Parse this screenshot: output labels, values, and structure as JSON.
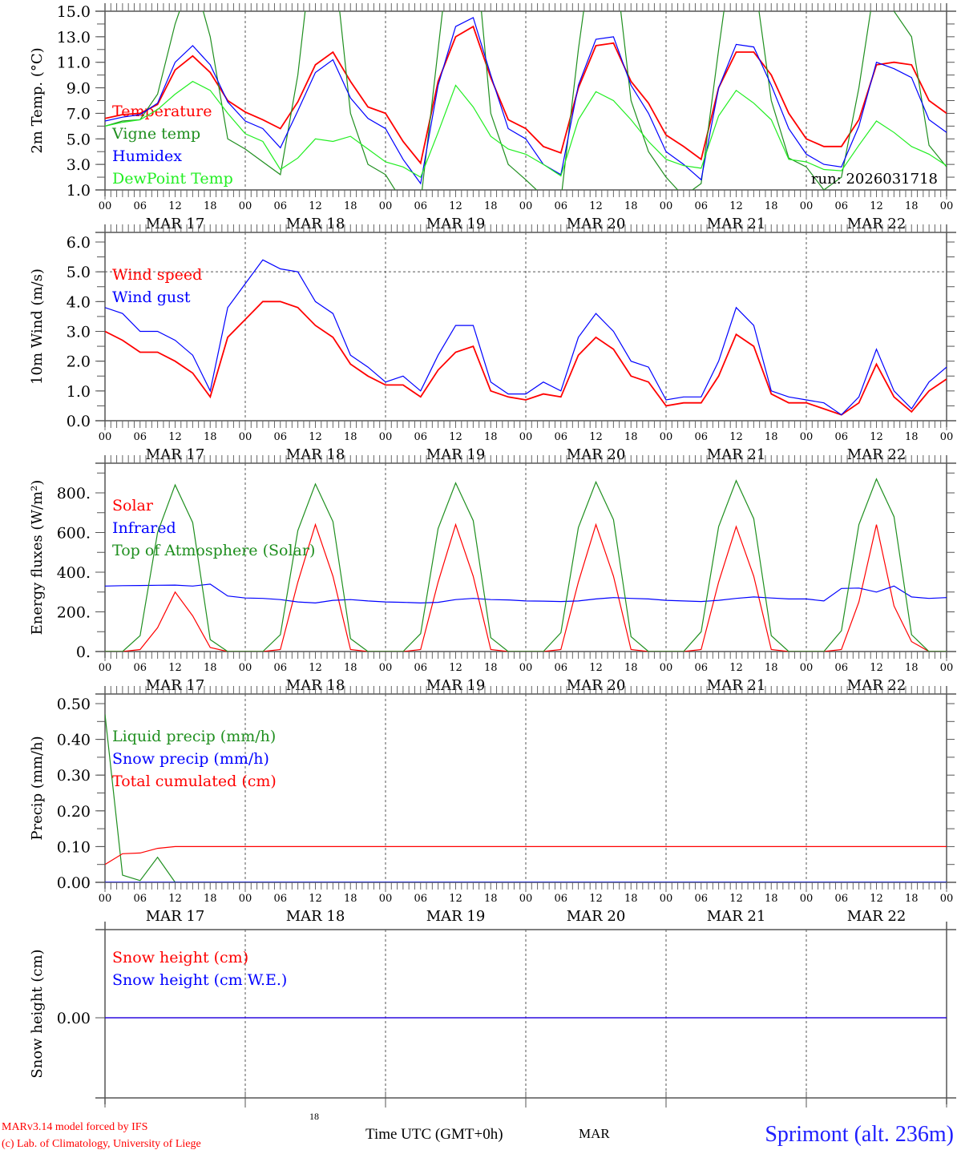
{
  "x_axis": {
    "step_hours": 3,
    "hour_labels": [
      "00",
      "06",
      "12",
      "18"
    ],
    "final_label": "00",
    "day_labels": [
      "MAR 17",
      "MAR 18",
      "MAR 19",
      "MAR 20",
      "MAR 21",
      "MAR 22"
    ]
  },
  "chart_data": [
    {
      "type": "line",
      "ylabel": "2m Temp. (°C)",
      "ylim": [
        1,
        15
      ],
      "ytick_labels": [
        {
          "v": 1,
          "t": "1.0"
        },
        {
          "v": 3,
          "t": "3.0"
        },
        {
          "v": 5,
          "t": "5.0"
        },
        {
          "v": 7,
          "t": "7.0"
        },
        {
          "v": 9,
          "t": "9.0"
        },
        {
          "v": 11,
          "t": "11.0"
        },
        {
          "v": 13,
          "t": "13.0"
        },
        {
          "v": 15,
          "t": "15.0"
        }
      ],
      "minor_step": 1,
      "annotation": "run: 2026031718",
      "series": [
        {
          "name": "Temperature",
          "color": "#ff0000",
          "values": [
            6.6,
            6.9,
            7.0,
            7.7,
            10.4,
            11.5,
            10.2,
            8.0,
            7.1,
            6.5,
            5.8,
            7.9,
            10.8,
            11.8,
            9.5,
            7.5,
            7.0,
            4.8,
            3.1,
            9.5,
            13.0,
            13.8,
            9.8,
            6.5,
            5.8,
            4.4,
            3.9,
            9.0,
            12.3,
            12.5,
            9.5,
            7.8,
            5.3,
            4.4,
            3.4,
            9.0,
            11.8,
            11.8,
            10.0,
            7.0,
            5.0,
            4.4,
            4.4,
            6.5,
            10.8,
            11.0,
            10.8,
            8.0,
            7.0
          ]
        },
        {
          "name": "Vigne temp",
          "color": "#1f8f1f",
          "values": [
            6.0,
            6.4,
            6.5,
            8.5,
            14.0,
            18,
            13,
            5.0,
            4.2,
            3.2,
            2.2,
            10,
            22,
            20,
            7,
            3.0,
            2.2,
            0,
            0,
            12,
            24,
            22,
            7,
            3,
            1.8,
            0.5,
            0.2,
            12,
            22,
            20,
            8,
            4,
            2.0,
            0.5,
            1.5,
            12,
            22,
            18,
            8,
            3.5,
            2.8,
            1.0,
            2.0,
            9,
            18,
            15,
            13,
            4.5,
            2.8
          ]
        },
        {
          "name": "Humidex",
          "color": "#0000ff",
          "values": [
            6.4,
            6.7,
            6.9,
            7.8,
            11.0,
            12.3,
            10.8,
            7.9,
            6.4,
            5.8,
            4.3,
            7.2,
            10.2,
            11.2,
            8.2,
            6.6,
            5.8,
            3.4,
            1.5,
            9.2,
            13.8,
            14.5,
            10.0,
            5.8,
            5.0,
            3.0,
            2.2,
            9.2,
            12.8,
            13.0,
            9.2,
            7.0,
            4.0,
            3.0,
            1.8,
            9.0,
            12.4,
            12.2,
            9.2,
            5.8,
            3.8,
            3.0,
            2.8,
            6.0,
            11.0,
            10.5,
            9.8,
            6.5,
            5.5
          ]
        },
        {
          "name": "DewPoint Temp",
          "color": "#22ee22",
          "values": [
            6.0,
            6.3,
            6.5,
            7.3,
            8.5,
            9.5,
            8.8,
            7.0,
            5.4,
            4.8,
            2.6,
            3.5,
            5.0,
            4.8,
            5.2,
            4.2,
            3.2,
            2.8,
            2.0,
            5.5,
            9.2,
            7.5,
            5.2,
            4.2,
            3.8,
            3.0,
            2.1,
            6.5,
            8.7,
            8.0,
            6.5,
            4.8,
            3.4,
            2.9,
            2.7,
            6.8,
            8.8,
            7.8,
            6.5,
            3.4,
            3.2,
            2.6,
            2.5,
            4.5,
            6.4,
            5.5,
            4.4,
            3.8,
            2.9
          ]
        }
      ]
    },
    {
      "type": "line",
      "ylabel": "10m Wind (m/s)",
      "ylim": [
        0,
        6
      ],
      "ytick_labels": [
        {
          "v": 0,
          "t": "0.0"
        },
        {
          "v": 1,
          "t": "1.0"
        },
        {
          "v": 2,
          "t": "2.0"
        },
        {
          "v": 3,
          "t": "3.0"
        },
        {
          "v": 4,
          "t": "4.0"
        },
        {
          "v": 5,
          "t": "5.0"
        },
        {
          "v": 6,
          "t": "6.0"
        }
      ],
      "minor_step": 0.5,
      "reference_lines": [
        5
      ],
      "series": [
        {
          "name": "Wind speed",
          "color": "#ff0000",
          "values": [
            3.0,
            2.7,
            2.3,
            2.3,
            2.0,
            1.6,
            0.8,
            2.8,
            3.4,
            4.0,
            4.0,
            3.8,
            3.2,
            2.8,
            1.9,
            1.5,
            1.2,
            1.2,
            0.8,
            1.7,
            2.3,
            2.5,
            1.0,
            0.8,
            0.7,
            0.9,
            0.8,
            2.2,
            2.8,
            2.4,
            1.5,
            1.3,
            0.5,
            0.6,
            0.6,
            1.5,
            2.9,
            2.5,
            0.9,
            0.6,
            0.6,
            0.4,
            0.2,
            0.6,
            1.9,
            0.8,
            0.3,
            1.0,
            1.4
          ]
        },
        {
          "name": "Wind gust",
          "color": "#0000ff",
          "values": [
            3.8,
            3.6,
            3.0,
            3.0,
            2.7,
            2.2,
            1.0,
            3.8,
            4.6,
            5.4,
            5.1,
            5.0,
            4.0,
            3.6,
            2.2,
            1.8,
            1.3,
            1.5,
            1.0,
            2.2,
            3.2,
            3.2,
            1.3,
            0.9,
            0.9,
            1.3,
            1.0,
            2.8,
            3.6,
            3.0,
            2.0,
            1.8,
            0.7,
            0.8,
            0.8,
            2.0,
            3.8,
            3.2,
            1.0,
            0.8,
            0.7,
            0.6,
            0.2,
            0.8,
            2.4,
            1.0,
            0.4,
            1.3,
            1.8
          ]
        }
      ]
    },
    {
      "type": "line",
      "ylabel": "Energy fluxes (W/m²)",
      "ylim": [
        0,
        800
      ],
      "ytick_labels": [
        {
          "v": 0,
          "t": "0."
        },
        {
          "v": 200,
          "t": "200."
        },
        {
          "v": 400,
          "t": "400."
        },
        {
          "v": 600,
          "t": "600."
        },
        {
          "v": 800,
          "t": "800."
        }
      ],
      "minor_step": 100,
      "series": [
        {
          "name": "Solar",
          "color": "#ff0000",
          "values": [
            0,
            0,
            10,
            120,
            300,
            180,
            20,
            0,
            0,
            0,
            10,
            350,
            640,
            380,
            10,
            0,
            0,
            0,
            10,
            350,
            640,
            380,
            10,
            0,
            0,
            0,
            10,
            350,
            640,
            380,
            10,
            0,
            0,
            0,
            10,
            350,
            630,
            380,
            10,
            0,
            0,
            0,
            10,
            250,
            640,
            230,
            50,
            0,
            0
          ]
        },
        {
          "name": "Infrared",
          "color": "#0000ff",
          "values": [
            330,
            332,
            333,
            334,
            335,
            330,
            340,
            280,
            270,
            268,
            262,
            250,
            245,
            258,
            262,
            255,
            250,
            248,
            245,
            248,
            262,
            268,
            262,
            260,
            255,
            254,
            252,
            255,
            265,
            272,
            268,
            265,
            258,
            255,
            252,
            258,
            268,
            275,
            270,
            265,
            265,
            255,
            318,
            320,
            300,
            330,
            275,
            268,
            272
          ]
        },
        {
          "name": "Top of Atmosphere (Solar)",
          "color": "#1f8f1f",
          "values": [
            0,
            0,
            80,
            600,
            840,
            650,
            60,
            0,
            0,
            0,
            85,
            610,
            845,
            655,
            65,
            0,
            0,
            0,
            90,
            620,
            850,
            660,
            70,
            0,
            0,
            0,
            95,
            625,
            855,
            665,
            75,
            0,
            0,
            0,
            100,
            630,
            862,
            670,
            80,
            0,
            0,
            0,
            105,
            640,
            870,
            680,
            85,
            0,
            0
          ]
        }
      ]
    },
    {
      "type": "line",
      "ylabel": "Precip (mm/h)",
      "ylim": [
        0,
        0.5
      ],
      "ytick_labels": [
        {
          "v": 0,
          "t": "0.00"
        },
        {
          "v": 0.1,
          "t": "0.10"
        },
        {
          "v": 0.2,
          "t": "0.20"
        },
        {
          "v": 0.3,
          "t": "0.30"
        },
        {
          "v": 0.4,
          "t": "0.40"
        },
        {
          "v": 0.5,
          "t": "0.50"
        }
      ],
      "minor_step": 0.05,
      "series": [
        {
          "name": "Liquid precip (mm/h)",
          "color": "#1f8f1f",
          "values": [
            0.47,
            0.02,
            0.005,
            0.07,
            0,
            0,
            0,
            0,
            0,
            0,
            0,
            0,
            0,
            0,
            0,
            0,
            0,
            0,
            0,
            0,
            0,
            0,
            0,
            0,
            0,
            0,
            0,
            0,
            0,
            0,
            0,
            0,
            0,
            0,
            0,
            0,
            0,
            0,
            0,
            0,
            0,
            0,
            0,
            0,
            0,
            0,
            0,
            0,
            0
          ]
        },
        {
          "name": "Snow precip (mm/h)",
          "color": "#0000ff",
          "values": [
            0,
            0,
            0,
            0,
            0,
            0,
            0,
            0,
            0,
            0,
            0,
            0,
            0,
            0,
            0,
            0,
            0,
            0,
            0,
            0,
            0,
            0,
            0,
            0,
            0,
            0,
            0,
            0,
            0,
            0,
            0,
            0,
            0,
            0,
            0,
            0,
            0,
            0,
            0,
            0,
            0,
            0,
            0,
            0,
            0,
            0,
            0,
            0,
            0
          ]
        },
        {
          "name": "Total cumulated (cm)",
          "color": "#ff0000",
          "values": [
            0.05,
            0.08,
            0.082,
            0.095,
            0.1,
            0.1,
            0.1,
            0.1,
            0.1,
            0.1,
            0.1,
            0.1,
            0.1,
            0.1,
            0.1,
            0.1,
            0.1,
            0.1,
            0.1,
            0.1,
            0.1,
            0.1,
            0.1,
            0.1,
            0.1,
            0.1,
            0.1,
            0.1,
            0.1,
            0.1,
            0.1,
            0.1,
            0.1,
            0.1,
            0.1,
            0.1,
            0.1,
            0.1,
            0.1,
            0.1,
            0.1,
            0.1,
            0.1,
            0.1,
            0.1,
            0.1,
            0.1,
            0.1,
            0.1
          ]
        }
      ]
    },
    {
      "type": "line",
      "ylabel": "Snow height (cm)",
      "ylim": [
        -1,
        1
      ],
      "ytick_labels": [
        {
          "v": 0,
          "t": "0.00"
        }
      ],
      "minor_step": 0,
      "series": [
        {
          "name": "Snow height (cm)",
          "color": "#ff0000",
          "values": [
            0,
            0,
            0,
            0,
            0,
            0,
            0,
            0,
            0,
            0,
            0,
            0,
            0,
            0,
            0,
            0,
            0,
            0,
            0,
            0,
            0,
            0,
            0,
            0,
            0,
            0,
            0,
            0,
            0,
            0,
            0,
            0,
            0,
            0,
            0,
            0,
            0,
            0,
            0,
            0,
            0,
            0,
            0,
            0,
            0,
            0,
            0,
            0,
            0
          ]
        },
        {
          "name": "Snow height (cm W.E.)",
          "color": "#0000ff",
          "values": [
            0,
            0,
            0,
            0,
            0,
            0,
            0,
            0,
            0,
            0,
            0,
            0,
            0,
            0,
            0,
            0,
            0,
            0,
            0,
            0,
            0,
            0,
            0,
            0,
            0,
            0,
            0,
            0,
            0,
            0,
            0,
            0,
            0,
            0,
            0,
            0,
            0,
            0,
            0,
            0,
            0,
            0,
            0,
            0,
            0,
            0,
            0,
            0,
            0
          ]
        }
      ]
    }
  ],
  "footer": {
    "credit_line1": "MARv3.14 model forced by IFS",
    "credit_line2": "(c) Lab. of Climatology, University of Liege",
    "x_title": "Time UTC (GMT+0h)",
    "stray_hour": "18",
    "stray_month": "MAR",
    "station": "Sprimont (alt. 236m)"
  }
}
